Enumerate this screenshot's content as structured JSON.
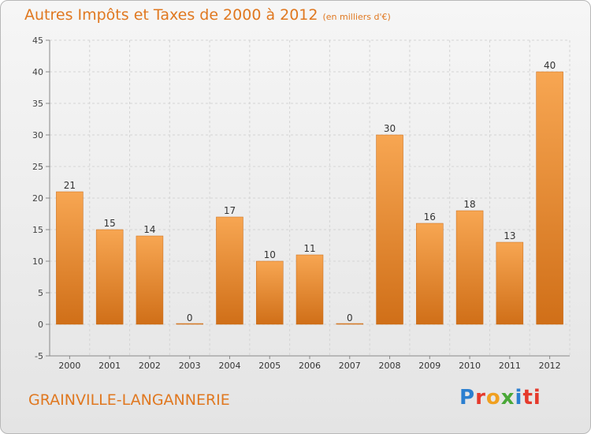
{
  "header": {
    "title": "Autres Impôts et Taxes de 2000 à 2012",
    "subtitle": "(en milliers d'€)"
  },
  "footer": {
    "commune": "GRAINVILLE-LANGANNERIE",
    "logo_text": "Proxiti"
  },
  "colors": {
    "accent": "#e07820",
    "bar_light": "#f5a04a",
    "bar_dark": "#d0701a"
  },
  "chart_data": {
    "type": "bar",
    "title": "Autres Impôts et Taxes de 2000 à 2012",
    "subtitle": "(en milliers d'€)",
    "xlabel": "",
    "ylabel": "",
    "categories": [
      "2000",
      "2001",
      "2002",
      "2003",
      "2004",
      "2005",
      "2006",
      "2007",
      "2008",
      "2009",
      "2010",
      "2011",
      "2012"
    ],
    "values": [
      21,
      15,
      14,
      0,
      17,
      10,
      11,
      0,
      30,
      16,
      18,
      13,
      40
    ],
    "ylim": [
      -5,
      45
    ],
    "yticks": [
      -5,
      0,
      5,
      10,
      15,
      20,
      25,
      30,
      35,
      40,
      45
    ],
    "grid": true,
    "data_labels": true
  }
}
